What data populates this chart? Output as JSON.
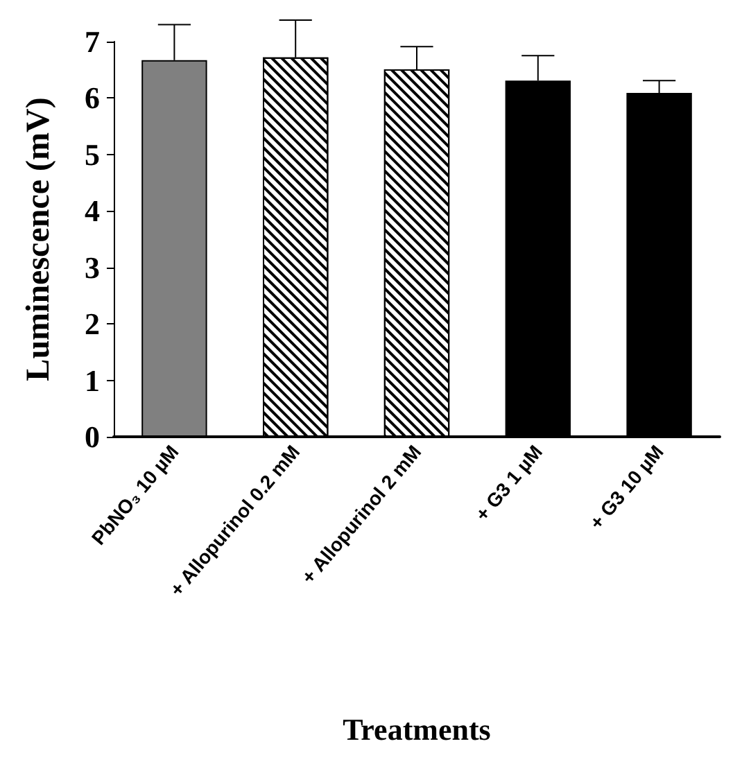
{
  "chart_data": {
    "type": "bar",
    "xlabel": "Treatments",
    "ylabel": "Luminescence (mV)",
    "categories": [
      "PbNO₃ 10 µM",
      "+ Allopurinol 0.2 mM",
      "+ Allopurinol 2 mM",
      "+ G3 1 µM",
      "+ G3 10 µM"
    ],
    "values": [
      6.67,
      6.72,
      6.51,
      6.31,
      6.09
    ],
    "colors": [
      "#808080",
      "#ffffff",
      "#ffffff",
      "#000000",
      "#000000"
    ],
    "errors": [
      [
        6.67,
        7.3
      ],
      [
        6.72,
        7.38
      ],
      [
        6.51,
        6.91
      ],
      [
        6.31,
        6.75
      ],
      [
        6.09,
        6.31
      ]
    ],
    "ylim": [
      0,
      7
    ],
    "yticks": [
      0,
      1,
      2,
      3,
      4,
      5,
      6,
      7
    ],
    "grid": false
  }
}
